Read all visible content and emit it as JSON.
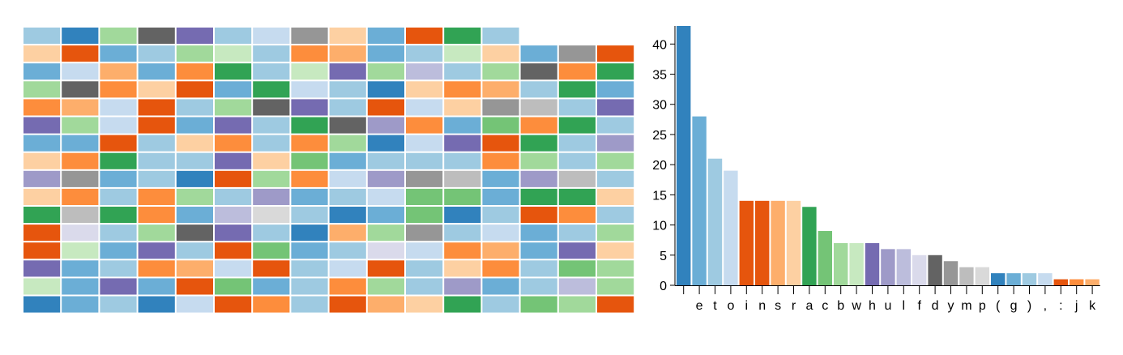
{
  "palette": {
    "b1": "#3182bd",
    "b2": "#6baed6",
    "b3": "#9ecae1",
    "b4": "#c6dbef",
    "o1": "#e6550d",
    "o2": "#fd8d3c",
    "o3": "#fdae6b",
    "o4": "#fdd0a2",
    "g1": "#31a354",
    "g2": "#74c476",
    "g3": "#a1d99b",
    "g4": "#c7e9c0",
    "p1": "#756bb1",
    "p2": "#9e9ac8",
    "p3": "#bcbddc",
    "p4": "#dadaeb",
    "k1": "#636363",
    "k2": "#969696",
    "k3": "#bdbdbd",
    "k4": "#d9d9d9"
  },
  "grid_rows": [
    [
      "b3",
      "b1",
      "g3",
      "k1",
      "p1",
      "b3",
      "b4",
      "k2",
      "o4",
      "b2",
      "o1",
      "g1",
      "b3"
    ],
    [
      "o4",
      "o1",
      "b2",
      "b3",
      "g3",
      "g4",
      "b3",
      "o2",
      "o3",
      "b2",
      "b3",
      "g4",
      "o4",
      "b2",
      "k2",
      "o1"
    ],
    [
      "b2",
      "b4",
      "o3",
      "b2",
      "o2",
      "g1",
      "b3",
      "g4",
      "p1",
      "g3",
      "p3",
      "b3",
      "g3",
      "k1",
      "o2",
      "g1"
    ],
    [
      "g3",
      "k1",
      "o2",
      "o4",
      "o1",
      "b2",
      "g1",
      "b4",
      "b3",
      "b1",
      "o4",
      "o2",
      "o3",
      "b3",
      "g1",
      "b2"
    ],
    [
      "o2",
      "o3",
      "b4",
      "o1",
      "b3",
      "g3",
      "k1",
      "p1",
      "b3",
      "o1",
      "b4",
      "o4",
      "k2",
      "k3",
      "b3",
      "p1"
    ],
    [
      "p1",
      "g3",
      "b4",
      "o1",
      "b2",
      "p1",
      "b3",
      "g1",
      "k1",
      "p2",
      "o2",
      "b2",
      "g2",
      "o2",
      "g1",
      "b3"
    ],
    [
      "b2",
      "b2",
      "o1",
      "b3",
      "o4",
      "o2",
      "b3",
      "o2",
      "g3",
      "b1",
      "b4",
      "p1",
      "o1",
      "g1",
      "b3",
      "p2"
    ],
    [
      "o4",
      "o2",
      "g1",
      "b3",
      "b3",
      "p1",
      "o4",
      "g2",
      "b2",
      "b3",
      "b3",
      "b3",
      "o2",
      "g3",
      "b3",
      "g3"
    ],
    [
      "p2",
      "k2",
      "b2",
      "b3",
      "b1",
      "o1",
      "g3",
      "o2",
      "b4",
      "p2",
      "k2",
      "k3",
      "b2",
      "p2",
      "k3",
      "b3"
    ],
    [
      "o4",
      "o2",
      "b3",
      "o2",
      "g3",
      "b3",
      "p2",
      "b2",
      "b3",
      "b4",
      "g2",
      "g2",
      "b2",
      "g1",
      "g1",
      "o4"
    ],
    [
      "g1",
      "k3",
      "g1",
      "o2",
      "b2",
      "p3",
      "k4",
      "b3",
      "b1",
      "b2",
      "g2",
      "b1",
      "b3",
      "o1",
      "o2",
      "b3"
    ],
    [
      "o1",
      "p4",
      "b3",
      "g3",
      "k1",
      "p1",
      "b3",
      "b1",
      "o3",
      "g3",
      "k2",
      "b3",
      "b4",
      "b2",
      "b3",
      "g3"
    ],
    [
      "o1",
      "g4",
      "b2",
      "p1",
      "b3",
      "o1",
      "g2",
      "b2",
      "b3",
      "p4",
      "b4",
      "o2",
      "o3",
      "b2",
      "p1",
      "o4"
    ],
    [
      "p1",
      "b2",
      "b3",
      "o2",
      "o3",
      "b4",
      "o1",
      "b3",
      "b4",
      "o1",
      "b3",
      "o4",
      "o2",
      "b3",
      "g2",
      "g3"
    ],
    [
      "g4",
      "b2",
      "p1",
      "b2",
      "o1",
      "g2",
      "b2",
      "b3",
      "o2",
      "g3",
      "b3",
      "p2",
      "b2",
      "b3",
      "p3",
      "g3"
    ],
    [
      "b1",
      "b2",
      "b3",
      "b1",
      "b4",
      "o1",
      "o2",
      "b3",
      "o1",
      "o3",
      "o4",
      "g1",
      "b3",
      "g2",
      "g3",
      "o1"
    ]
  ],
  "chart_data": {
    "type": "bar",
    "categories": [
      " ",
      "e",
      "t",
      "o",
      "i",
      "n",
      "s",
      "r",
      "a",
      "c",
      "b",
      "w",
      "h",
      "u",
      "l",
      "f",
      "d",
      "y",
      "m",
      "p",
      "(",
      "g",
      ")",
      ",",
      ":",
      "j",
      "k"
    ],
    "values": [
      43,
      28,
      21,
      19,
      14,
      14,
      14,
      14,
      13,
      9,
      7,
      7,
      7,
      6,
      6,
      5,
      5,
      4,
      3,
      3,
      2,
      2,
      2,
      2,
      1,
      1,
      1
    ],
    "colors": [
      "b1",
      "b2",
      "b3",
      "b4",
      "o1",
      "o1",
      "o3",
      "o4",
      "g1",
      "g2",
      "g3",
      "g4",
      "p1",
      "p2",
      "p3",
      "p4",
      "k1",
      "k2",
      "k3",
      "k4",
      "b1",
      "b2",
      "b3",
      "b4",
      "o1",
      "o2",
      "o3"
    ],
    "y_ticks": [
      "0",
      "5",
      "10",
      "15",
      "20",
      "25",
      "30",
      "35",
      "40"
    ],
    "ylim": [
      0,
      43
    ],
    "grid": false,
    "legend": "none"
  }
}
